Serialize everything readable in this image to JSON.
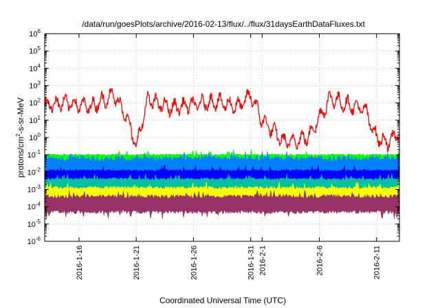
{
  "chart_data": {
    "type": "line",
    "title": "/data/run/goesPlots/archive/2016-02-13/flux/../flux/31daysEarthDataFluxes.txt",
    "xlabel": "Coordinated Universal Time (UTC)",
    "ylabel": "protons/cm2-s-sr-MeV",
    "ylabel_parts": {
      "pre": "protons/cm",
      "sup": "2",
      "post": "-s-sr-MeV"
    },
    "yscale": "log",
    "ylim": [
      1e-06,
      1000000.0
    ],
    "y_ticks": [
      {
        "base": "10",
        "exp": "-6"
      },
      {
        "base": "10",
        "exp": "-5"
      },
      {
        "base": "10",
        "exp": "-4"
      },
      {
        "base": "10",
        "exp": "-3"
      },
      {
        "base": "10",
        "exp": "-2"
      },
      {
        "base": "10",
        "exp": "-1"
      },
      {
        "base": "10",
        "exp": "0"
      },
      {
        "base": "10",
        "exp": "1"
      },
      {
        "base": "10",
        "exp": "2"
      },
      {
        "base": "10",
        "exp": "3"
      },
      {
        "base": "10",
        "exp": "4"
      },
      {
        "base": "10",
        "exp": "5"
      },
      {
        "base": "10",
        "exp": "6"
      }
    ],
    "xlim": [
      "2016-01-13",
      "2016-02-13"
    ],
    "x_ticks": [
      "2016-1-16",
      "2016-1-21",
      "2016-1-26",
      "2016-1-31",
      "2016-2-1",
      "2016-2-6",
      "2016-2-11"
    ],
    "grid": true,
    "legend": "none",
    "series": [
      {
        "color": "#ff0000",
        "level_log10": 1.5,
        "note": "highly variable, roughly 0.1 to 400",
        "x": [
          "2016-01-13",
          "2016-01-15",
          "2016-01-17",
          "2016-01-19",
          "2016-01-20",
          "2016-01-21",
          "2016-01-22",
          "2016-01-24",
          "2016-01-26",
          "2016-01-28",
          "2016-01-30",
          "2016-01-31",
          "2016-02-01",
          "2016-02-03",
          "2016-02-05",
          "2016-02-07",
          "2016-02-08",
          "2016-02-10",
          "2016-02-11",
          "2016-02-12",
          "2016-02-13"
        ],
        "y": [
          80,
          100,
          60,
          300,
          30,
          0.3,
          150,
          50,
          80,
          120,
          60,
          300,
          10,
          0.5,
          1,
          200,
          100,
          40,
          1,
          0.5,
          2
        ]
      },
      {
        "color": "#00ff00",
        "band_log10": [
          -1.5,
          -1.0
        ]
      },
      {
        "color": "#0080ff",
        "band_log10": [
          -2.6,
          -1.2
        ]
      },
      {
        "color": "#0000ff",
        "band_log10": [
          -2.4,
          -1.9
        ]
      },
      {
        "color": "#00c0a0",
        "band_log10": [
          -3.0,
          -2.4
        ]
      },
      {
        "color": "#ffff00",
        "band_log10": [
          -3.6,
          -2.9
        ]
      },
      {
        "color": "#993366",
        "band_log10": [
          -4.3,
          -3.4
        ]
      }
    ]
  }
}
